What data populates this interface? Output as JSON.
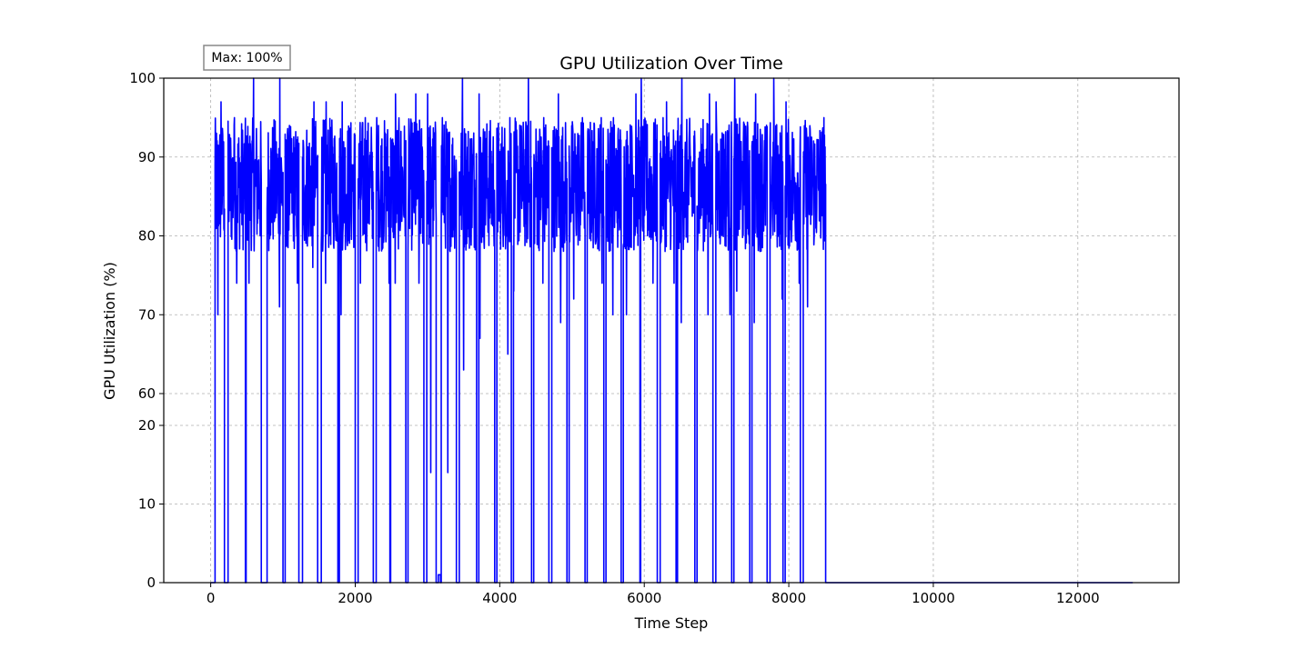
{
  "chart_data": {
    "type": "line",
    "title": "GPU Utilization Over Time",
    "xlabel": "Time Step",
    "ylabel": "GPU Utilization (%)",
    "annotation": "Max: 100%",
    "xlim": [
      -650,
      13400
    ],
    "ylim": [
      0,
      100
    ],
    "y_scale": "piecewise: 0-20 linear lower segment, 60-100 linear upper segment",
    "x_ticks": [
      0,
      2000,
      4000,
      6000,
      8000,
      10000,
      12000
    ],
    "x_tick_labels": [
      "0",
      "2000",
      "4000",
      "6000",
      "8000",
      "10000",
      "12000"
    ],
    "y_ticks": [
      0,
      10,
      20,
      60,
      70,
      80,
      90,
      100
    ],
    "y_tick_labels": [
      "0",
      "10",
      "20",
      "60",
      "70",
      "80",
      "90",
      "100"
    ],
    "grid": true,
    "line_color": "#0000ff",
    "series": [
      {
        "values_description": "bursts of high utilization (roughly 70-100%) separated by drops to 0",
        "bursts": [
          {
            "start": 60,
            "end": 190,
            "peak": 97,
            "min": 70
          },
          {
            "start": 240,
            "end": 480,
            "peak": 95,
            "min": 74
          },
          {
            "start": 490,
            "end": 700,
            "peak": 100,
            "min": 74
          },
          {
            "start": 780,
            "end": 1000,
            "peak": 100,
            "min": 71
          },
          {
            "start": 1030,
            "end": 1220,
            "peak": 94,
            "min": 74
          },
          {
            "start": 1270,
            "end": 1480,
            "peak": 97,
            "min": 76
          },
          {
            "start": 1530,
            "end": 1760,
            "peak": 97,
            "min": 74
          },
          {
            "start": 1780,
            "end": 2000,
            "peak": 97,
            "min": 70
          },
          {
            "start": 2040,
            "end": 2250,
            "peak": 95,
            "min": 74
          },
          {
            "start": 2290,
            "end": 2480,
            "peak": 95,
            "min": 74
          },
          {
            "start": 2490,
            "end": 2700,
            "peak": 98,
            "min": 74
          },
          {
            "start": 2730,
            "end": 2950,
            "peak": 98,
            "min": 74
          },
          {
            "start": 2990,
            "end": 3120,
            "peak": 98,
            "min": 14
          },
          {
            "start": 3150,
            "end": 3180,
            "peak": 1,
            "min": 0
          },
          {
            "start": 3190,
            "end": 3400,
            "peak": 95,
            "min": 14
          },
          {
            "start": 3440,
            "end": 3680,
            "peak": 100,
            "min": 63
          },
          {
            "start": 3710,
            "end": 3930,
            "peak": 98,
            "min": 67
          },
          {
            "start": 3960,
            "end": 4160,
            "peak": 95,
            "min": 65
          },
          {
            "start": 4190,
            "end": 4440,
            "peak": 100,
            "min": 73
          },
          {
            "start": 4470,
            "end": 4680,
            "peak": 95,
            "min": 74
          },
          {
            "start": 4720,
            "end": 4930,
            "peak": 98,
            "min": 69
          },
          {
            "start": 4960,
            "end": 5180,
            "peak": 95,
            "min": 72
          },
          {
            "start": 5210,
            "end": 5440,
            "peak": 95,
            "min": 74
          },
          {
            "start": 5470,
            "end": 5680,
            "peak": 95,
            "min": 70
          },
          {
            "start": 5710,
            "end": 5940,
            "peak": 98,
            "min": 70
          },
          {
            "start": 5950,
            "end": 6180,
            "peak": 100,
            "min": 74
          },
          {
            "start": 6220,
            "end": 6440,
            "peak": 97,
            "min": 74
          },
          {
            "start": 6460,
            "end": 6700,
            "peak": 100,
            "min": 69
          },
          {
            "start": 6730,
            "end": 6950,
            "peak": 98,
            "min": 70
          },
          {
            "start": 6990,
            "end": 7210,
            "peak": 97,
            "min": 70
          },
          {
            "start": 7240,
            "end": 7460,
            "peak": 100,
            "min": 73
          },
          {
            "start": 7490,
            "end": 7700,
            "peak": 98,
            "min": 69
          },
          {
            "start": 7740,
            "end": 7920,
            "peak": 100,
            "min": 72
          },
          {
            "start": 7950,
            "end": 8160,
            "peak": 97,
            "min": 74
          },
          {
            "start": 8200,
            "end": 8510,
            "peak": 95,
            "min": 71
          }
        ],
        "tail": {
          "start": 8510,
          "end": 12760,
          "value": 0
        }
      }
    ]
  }
}
